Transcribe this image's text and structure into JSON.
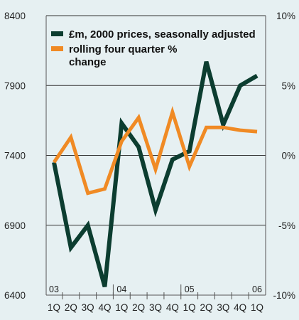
{
  "chart_data": {
    "type": "line",
    "categories": [
      "1Q",
      "2Q",
      "3Q",
      "4Q",
      "1Q",
      "2Q",
      "3Q",
      "4Q",
      "1Q",
      "2Q",
      "3Q",
      "4Q",
      "1Q"
    ],
    "year_markers": [
      {
        "index": 0,
        "label": "03"
      },
      {
        "index": 4,
        "label": "04"
      },
      {
        "index": 8,
        "label": "05"
      },
      {
        "index": 12,
        "label": "06"
      }
    ],
    "y_left": {
      "lim": [
        6400,
        8400
      ],
      "ticks": [
        "6400",
        "6900",
        "7400",
        "7900",
        "8400"
      ],
      "values": [
        6400,
        6900,
        7400,
        7900,
        8400
      ]
    },
    "y_right": {
      "lim": [
        -10,
        10
      ],
      "ticks": [
        "-10%",
        "-5%",
        "0%",
        "5%",
        "10%"
      ],
      "values": [
        -10,
        -5,
        0,
        5,
        10
      ]
    },
    "grid": true,
    "legend_position": "top-right",
    "series": [
      {
        "name": "£m, 2000 prices, seasonally adjusted",
        "axis": "left",
        "color": "#0c3d30",
        "values": [
          7350,
          6740,
          6900,
          6460,
          7630,
          7460,
          7010,
          7370,
          7430,
          8070,
          7620,
          7900,
          7970
        ]
      },
      {
        "name": "rolling four quarter % change",
        "legend_lines": [
          "rolling four quarter %",
          "change"
        ],
        "axis": "right",
        "color": "#f08a24",
        "values": [
          -0.5,
          1.3,
          -2.7,
          -2.4,
          1.0,
          2.7,
          -1.0,
          3.1,
          -0.8,
          2.0,
          2.0,
          1.8,
          1.7
        ]
      }
    ]
  }
}
